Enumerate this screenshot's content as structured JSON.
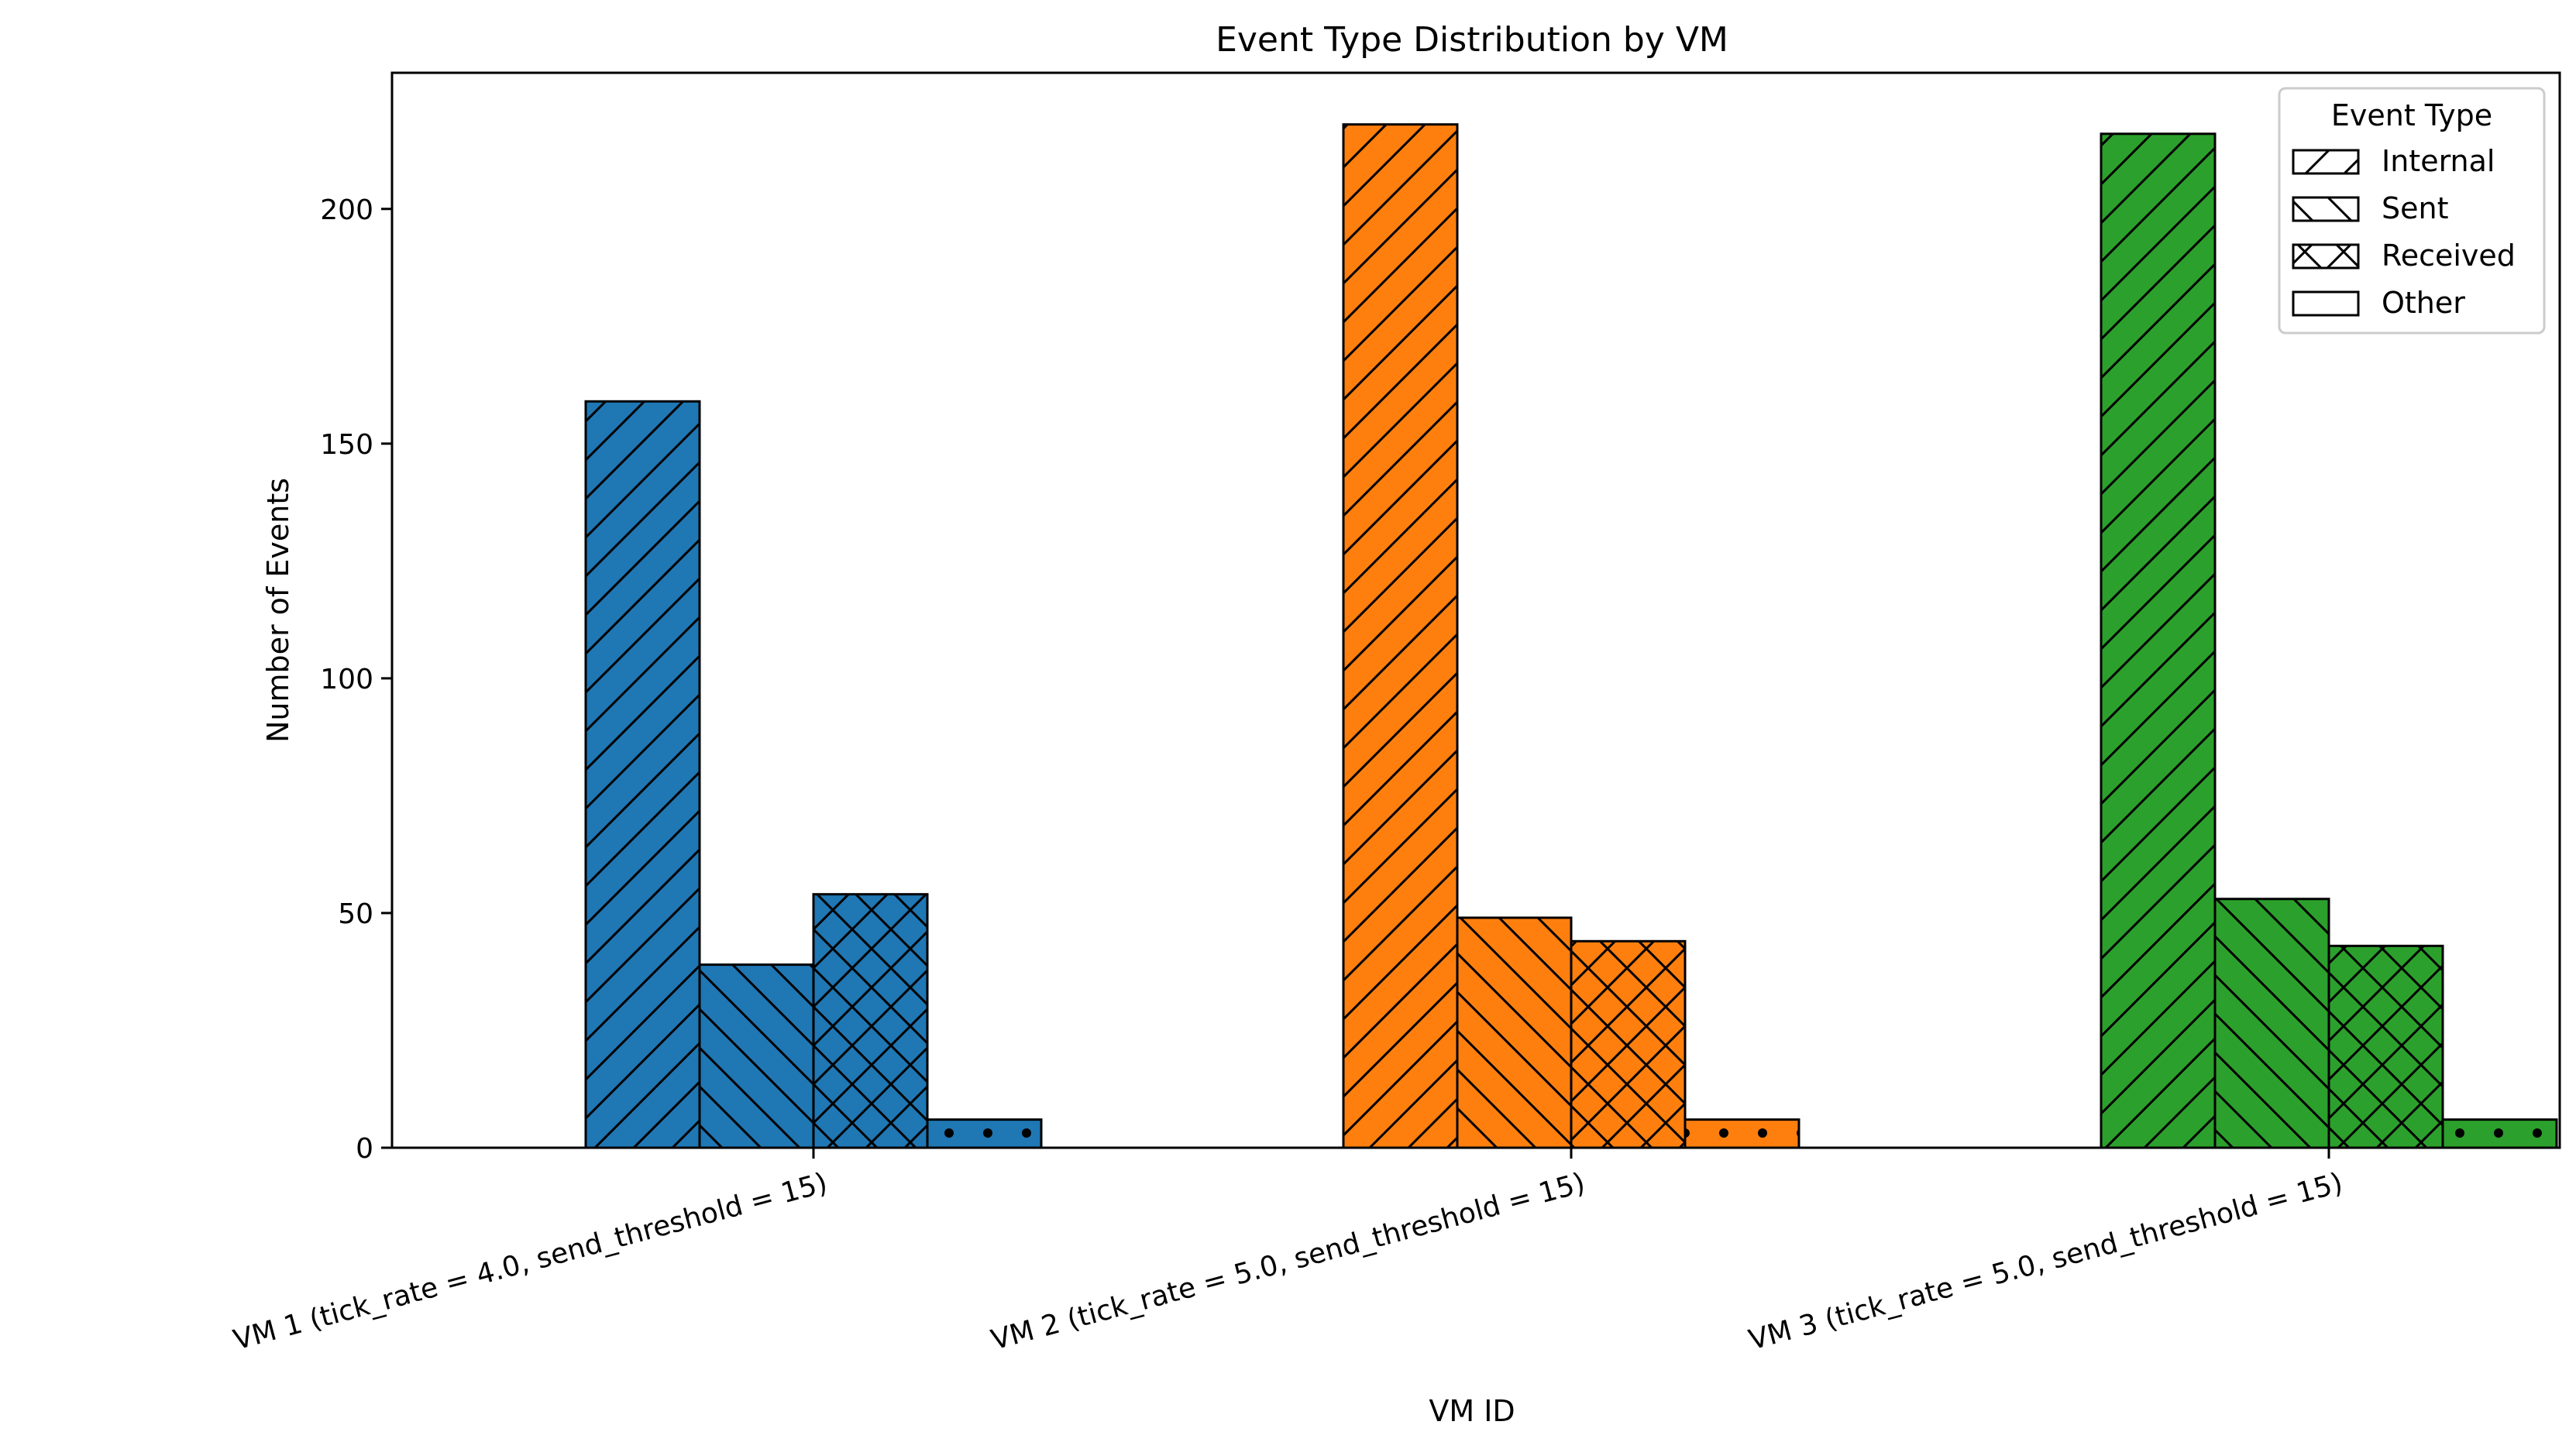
{
  "chart_data": {
    "type": "bar",
    "title": "Event Type Distribution by VM",
    "xlabel": "VM ID",
    "ylabel": "Number of Events",
    "ylim": [
      0,
      229
    ],
    "yticks": [
      0,
      50,
      100,
      150,
      200
    ],
    "grid": false,
    "categories": [
      "VM 1 (tick_rate = 4.0, send_threshold = 15)",
      "VM 2 (tick_rate = 5.0, send_threshold = 15)",
      "VM 3 (tick_rate = 5.0, send_threshold = 15)"
    ],
    "category_colors": [
      "#1f77b4",
      "#ff7f0e",
      "#2ca02c"
    ],
    "series": [
      {
        "name": "Internal",
        "hatch": "diagonal",
        "values": [
          159,
          218,
          216
        ]
      },
      {
        "name": "Sent",
        "hatch": "backslash",
        "values": [
          39,
          49,
          53
        ]
      },
      {
        "name": "Received",
        "hatch": "cross",
        "values": [
          54,
          44,
          43
        ]
      },
      {
        "name": "Other",
        "hatch": "dots",
        "values": [
          6,
          6,
          6
        ]
      }
    ],
    "legend": {
      "title": "Event Type",
      "placement": "top-right"
    }
  }
}
